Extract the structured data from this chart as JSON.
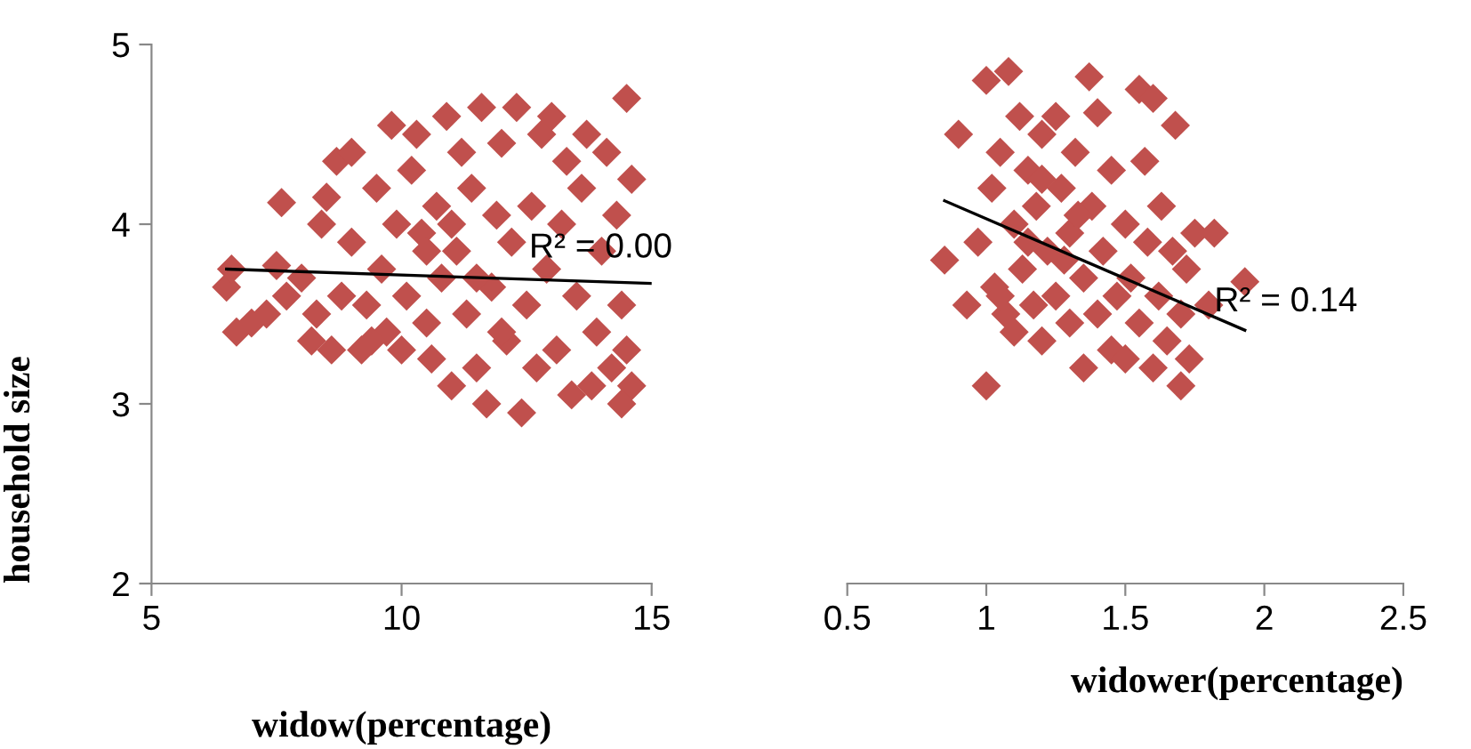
{
  "chart_data": [
    {
      "type": "scatter",
      "xlabel": "widow(percentage)",
      "ylabel": "household size",
      "xlim": [
        5,
        15
      ],
      "xticks": [
        5,
        10,
        15
      ],
      "ylim": [
        2,
        5
      ],
      "yticks": [
        2,
        3,
        4,
        5
      ],
      "grid": false,
      "annotations": [
        "R² = 0.00"
      ],
      "series": [
        {
          "marker": "diamond",
          "color": "#c0504d",
          "x": [
            6.5,
            6.6,
            6.7,
            7.0,
            7.3,
            7.5,
            7.6,
            7.7,
            8.0,
            8.2,
            8.3,
            8.4,
            8.5,
            8.6,
            8.7,
            8.8,
            9.0,
            9.0,
            9.2,
            9.3,
            9.5,
            9.6,
            9.7,
            9.8,
            9.9,
            10.0,
            10.1,
            10.2,
            10.3,
            10.4,
            10.5,
            10.6,
            10.7,
            10.8,
            10.9,
            11.0,
            11.1,
            11.2,
            11.3,
            11.4,
            11.5,
            11.6,
            11.7,
            11.8,
            11.9,
            12.0,
            12.1,
            12.2,
            12.3,
            12.4,
            12.5,
            12.6,
            12.7,
            12.8,
            12.9,
            13.0,
            13.1,
            13.2,
            13.3,
            13.4,
            13.5,
            13.6,
            13.7,
            13.8,
            13.9,
            14.0,
            14.1,
            14.2,
            14.3,
            14.4,
            14.5,
            14.6,
            14.5,
            14.6,
            14.4,
            9.4,
            10.5,
            11.0,
            11.5,
            12.0
          ],
          "values": [
            3.65,
            3.75,
            3.4,
            3.45,
            3.5,
            3.77,
            4.12,
            3.6,
            3.7,
            3.35,
            3.5,
            4.0,
            4.15,
            3.3,
            4.35,
            3.6,
            3.9,
            4.4,
            3.3,
            3.55,
            4.2,
            3.75,
            3.4,
            4.55,
            4.0,
            3.3,
            3.6,
            4.3,
            4.5,
            3.95,
            3.45,
            3.25,
            4.1,
            3.7,
            4.6,
            3.1,
            3.85,
            4.4,
            3.5,
            4.2,
            3.2,
            4.65,
            3.0,
            3.65,
            4.05,
            4.45,
            3.35,
            3.9,
            4.65,
            2.95,
            3.55,
            4.1,
            3.2,
            4.5,
            3.75,
            4.6,
            3.3,
            4.0,
            4.35,
            3.05,
            3.6,
            4.2,
            4.5,
            3.1,
            3.4,
            3.85,
            4.4,
            3.2,
            4.05,
            3.55,
            3.3,
            4.25,
            4.7,
            3.1,
            3.0,
            3.35,
            3.85,
            4.0,
            3.7,
            3.4
          ]
        },
        {
          "type": "line",
          "color": "#000000",
          "x": [
            6.5,
            15
          ],
          "values": [
            3.75,
            3.67
          ]
        }
      ]
    },
    {
      "type": "scatter",
      "xlabel": "widower(percentage)",
      "xlim": [
        0.5,
        2.5
      ],
      "xticks": [
        0.5,
        1,
        1.5,
        2,
        2.5
      ],
      "ylim": [
        2,
        5
      ],
      "tick_labels": "x",
      "grid": false,
      "annotations": [
        "R² = 0.14"
      ],
      "series": [
        {
          "marker": "diamond",
          "color": "#c0504d",
          "x": [
            0.85,
            0.9,
            0.93,
            0.97,
            1.0,
            1.0,
            1.02,
            1.03,
            1.05,
            1.07,
            1.08,
            1.1,
            1.1,
            1.12,
            1.13,
            1.15,
            1.17,
            1.18,
            1.2,
            1.2,
            1.22,
            1.25,
            1.25,
            1.27,
            1.3,
            1.3,
            1.32,
            1.35,
            1.35,
            1.37,
            1.38,
            1.4,
            1.4,
            1.42,
            1.45,
            1.45,
            1.47,
            1.5,
            1.5,
            1.52,
            1.55,
            1.55,
            1.57,
            1.58,
            1.6,
            1.6,
            1.62,
            1.63,
            1.65,
            1.67,
            1.68,
            1.7,
            1.7,
            1.72,
            1.73,
            1.75,
            1.8,
            1.82,
            1.93,
            1.15,
            1.28,
            1.05,
            1.33,
            1.2
          ],
          "values": [
            3.8,
            4.5,
            3.55,
            3.9,
            3.1,
            4.8,
            4.2,
            3.65,
            4.4,
            3.5,
            4.85,
            4.0,
            3.4,
            4.6,
            3.75,
            4.3,
            3.55,
            4.1,
            3.35,
            4.5,
            3.85,
            4.6,
            3.6,
            4.2,
            3.45,
            3.95,
            4.4,
            3.7,
            3.2,
            4.82,
            4.1,
            3.5,
            4.62,
            3.85,
            3.3,
            4.3,
            3.6,
            4.0,
            3.25,
            3.7,
            4.75,
            3.45,
            4.35,
            3.9,
            3.2,
            4.7,
            3.6,
            4.1,
            3.35,
            3.85,
            4.55,
            3.1,
            3.5,
            3.75,
            3.25,
            3.95,
            3.55,
            3.95,
            3.68,
            3.9,
            3.8,
            3.6,
            4.05,
            4.25
          ]
        },
        {
          "type": "line",
          "color": "#000000",
          "x": [
            0.85,
            1.93
          ],
          "values": [
            4.13,
            3.41
          ]
        }
      ]
    }
  ]
}
